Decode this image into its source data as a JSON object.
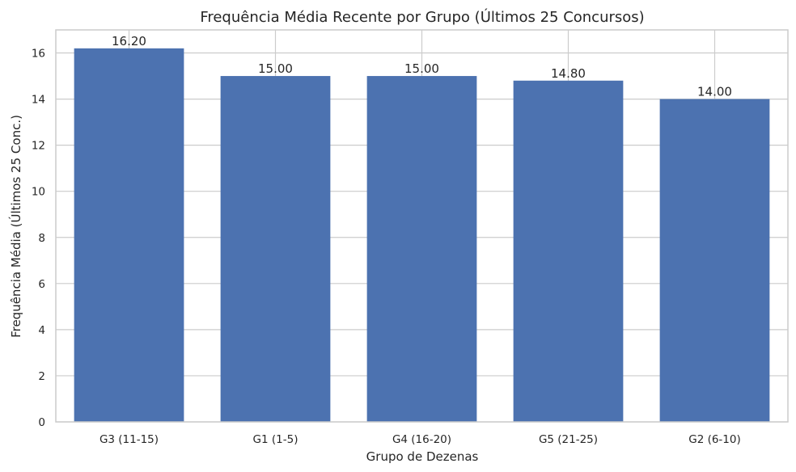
{
  "chart_data": {
    "type": "bar",
    "title": "Frequência Média Recente por Grupo (Últimos 25 Concursos)",
    "xlabel": "Grupo de Dezenas",
    "ylabel": "Frequência Média (Últimos 25 Conc.)",
    "categories": [
      "G3 (11-15)",
      "G1 (1-5)",
      "G4 (16-20)",
      "G5 (21-25)",
      "G2 (6-10)"
    ],
    "values": [
      16.2,
      15.0,
      15.0,
      14.8,
      14.0
    ],
    "value_labels": [
      "16.20",
      "15.00",
      "15.00",
      "14.80",
      "14.00"
    ],
    "ylim": [
      0,
      17
    ],
    "yticks": [
      0,
      2,
      4,
      6,
      8,
      10,
      12,
      14,
      16
    ],
    "grid": true,
    "bar_color": "#4c72b0"
  }
}
